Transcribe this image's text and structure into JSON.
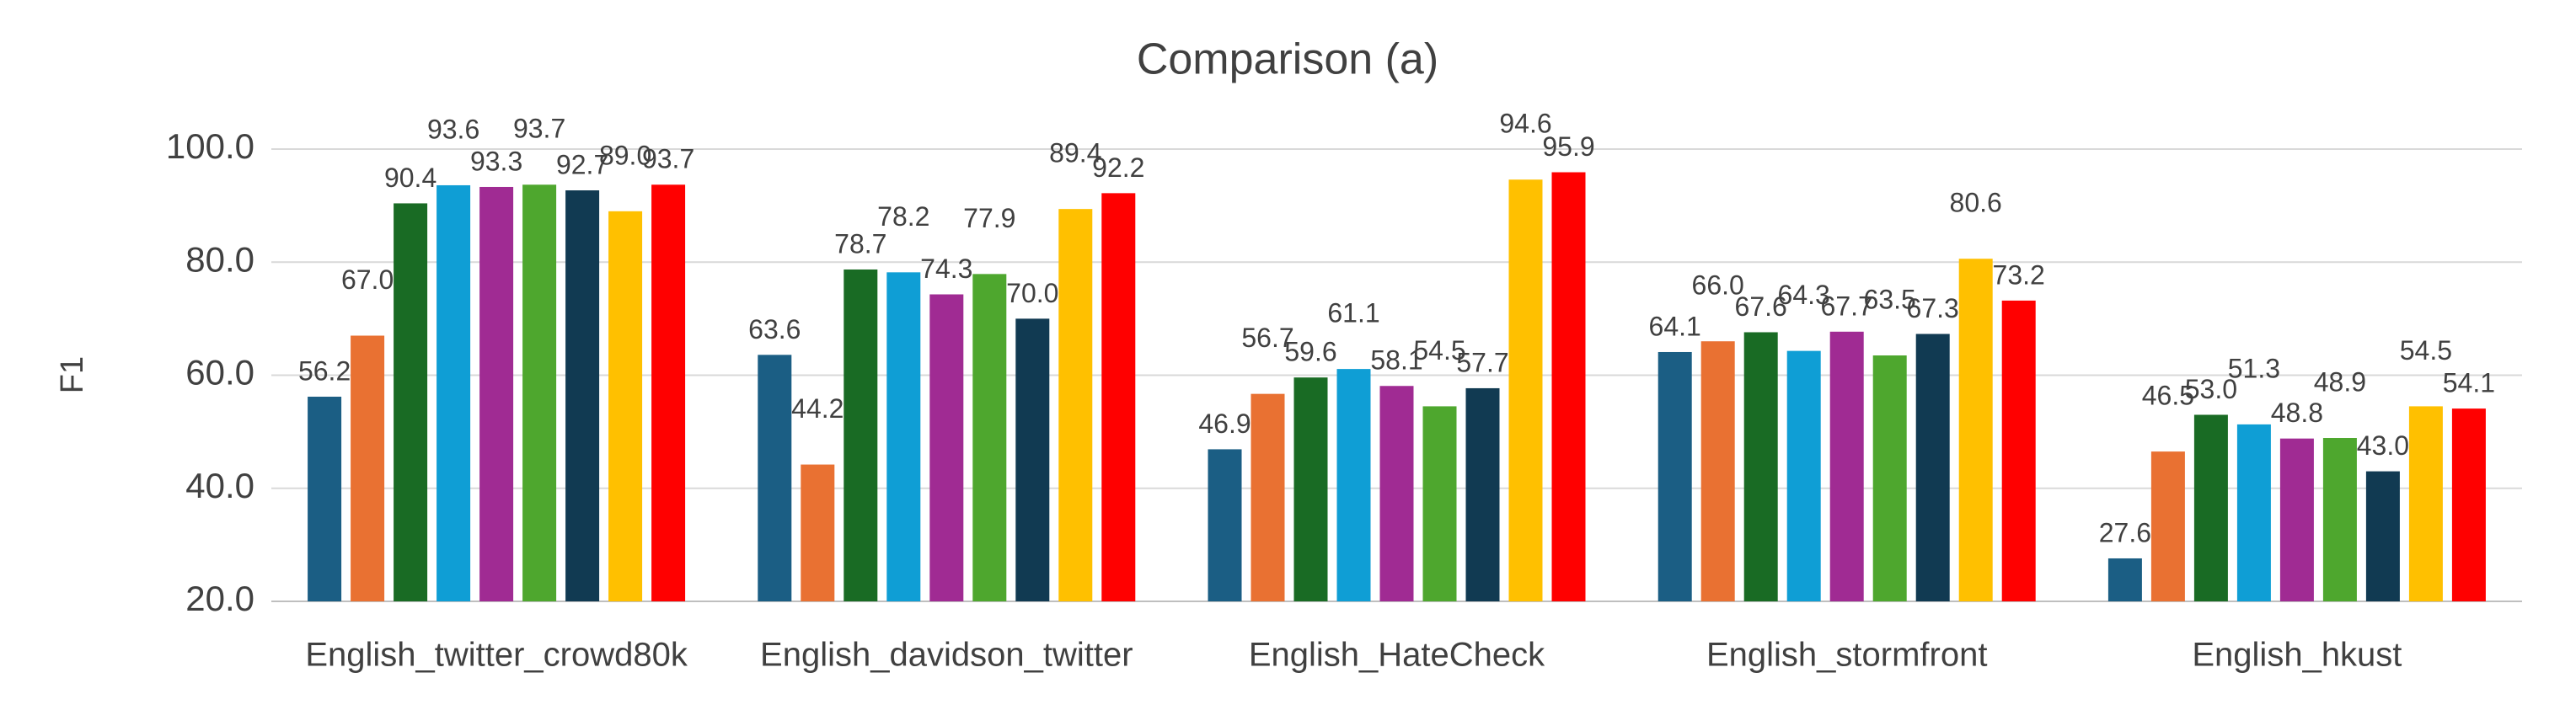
{
  "chart_data": {
    "type": "bar",
    "title": "Comparison (a)",
    "y_label": "F1",
    "categories": [
      "English_twitter_crowd80k",
      "English_davidson_twitter",
      "English_HateCheck",
      "English_stormfront",
      "English_hkust"
    ],
    "series": [
      {
        "color": "#1b5e84",
        "values": [
          56.2,
          63.6,
          46.9,
          64.1,
          27.6
        ],
        "value_labels": [
          "56.2",
          "63.6",
          "46.9",
          "64.1",
          "27.6"
        ]
      },
      {
        "color": "#e97132",
        "values": [
          67.0,
          44.2,
          56.7,
          66.0,
          46.5
        ],
        "value_labels": [
          "67.0",
          "44.2",
          "56.7",
          "66.0",
          "46.5"
        ]
      },
      {
        "color": "#196b24",
        "values": [
          90.4,
          78.7,
          59.6,
          67.6,
          53.0
        ],
        "value_labels": [
          "90.4",
          "78.7",
          "59.6",
          "67.6",
          "53.0"
        ]
      },
      {
        "color": "#0f9ed5",
        "values": [
          93.6,
          78.2,
          61.1,
          64.3,
          51.3
        ],
        "value_labels": [
          "93.6",
          "78.2",
          "61.1",
          "64.3",
          "51.3"
        ]
      },
      {
        "color": "#a02b93",
        "values": [
          93.3,
          74.3,
          58.1,
          67.7,
          48.8
        ],
        "value_labels": [
          "93.3",
          "74.3",
          "58.1",
          "67.7",
          "48.8"
        ]
      },
      {
        "color": "#4ea72e",
        "values": [
          93.7,
          77.9,
          54.5,
          63.5,
          48.9
        ],
        "value_labels": [
          "93.7",
          "77.9",
          "54.5",
          "63.5",
          "48.9"
        ]
      },
      {
        "color": "#113a52",
        "values": [
          92.7,
          70.0,
          57.7,
          67.3,
          43.0
        ],
        "value_labels": [
          "92.7",
          "70.0",
          "57.7",
          "67.3",
          "43.0"
        ]
      },
      {
        "color": "#ffc000",
        "values": [
          89.0,
          89.4,
          94.6,
          80.6,
          54.5
        ],
        "value_labels": [
          "89.0",
          "89.4",
          "94.6",
          "80.6",
          "54.5"
        ]
      },
      {
        "color": "#ff0000",
        "values": [
          93.7,
          92.2,
          95.9,
          73.2,
          54.1
        ],
        "value_labels": [
          "93.7",
          "92.2",
          "95.9",
          "73.2",
          "54.1"
        ]
      }
    ],
    "ylim": [
      20,
      100
    ],
    "yticks": [
      {
        "value": 20,
        "label": "20.0"
      },
      {
        "value": 40,
        "label": "40.0"
      },
      {
        "value": 60,
        "label": "60.0"
      },
      {
        "value": 80,
        "label": "80.0"
      },
      {
        "value": 100,
        "label": "100.0"
      }
    ],
    "grid": true
  }
}
